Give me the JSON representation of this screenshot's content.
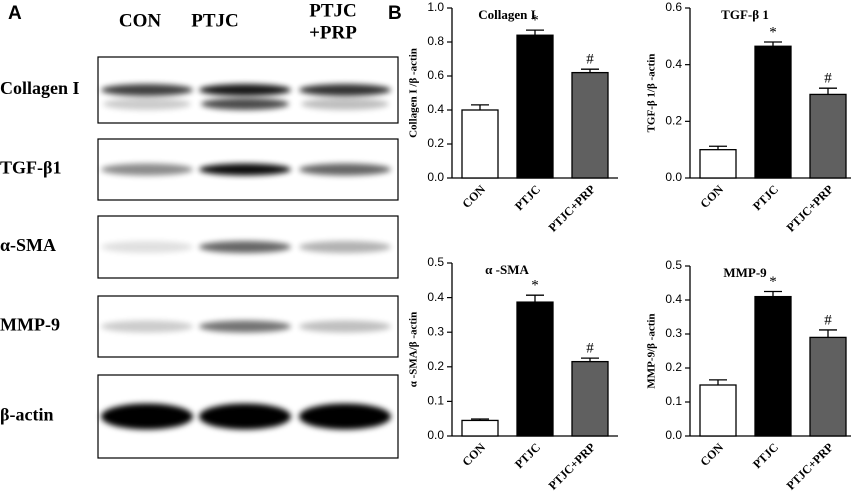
{
  "panel_a": {
    "letter": "A",
    "columns": [
      "CON",
      "PTJC",
      [
        "PTJC",
        "+PRP"
      ]
    ],
    "rows": [
      "Collagen I",
      "TGF-β1",
      "α-SMA",
      "MMP-9",
      "β-actin"
    ]
  },
  "panel_b": {
    "letter": "B"
  },
  "chart_data": [
    {
      "type": "bar",
      "title": "Collagen I",
      "y_label": "Collagen I /β -actin",
      "categories": [
        "CON",
        "PTJC",
        "PTJC+PRP"
      ],
      "values": [
        0.4,
        0.84,
        0.62
      ],
      "errors": [
        0.03,
        0.03,
        0.02
      ],
      "colors": [
        "#ffffff",
        "#000000",
        "#606060"
      ],
      "significance": [
        null,
        "*",
        "#"
      ],
      "ylim": [
        0,
        1.0
      ],
      "yticks": [
        {
          "value": 0,
          "label": "0.0"
        },
        0.2,
        0.4,
        0.6,
        0.8,
        {
          "value": 1.0,
          "label": "1.0"
        }
      ]
    },
    {
      "type": "bar",
      "title": "TGF-β 1",
      "y_label": "TGF-β 1/β -actin",
      "categories": [
        "CON",
        "PTJC",
        "PTJC+PRP"
      ],
      "values": [
        0.1,
        0.465,
        0.295
      ],
      "errors": [
        0.012,
        0.015,
        0.022
      ],
      "colors": [
        "#ffffff",
        "#000000",
        "#606060"
      ],
      "significance": [
        null,
        "*",
        "#"
      ],
      "ylim": [
        0,
        0.6
      ],
      "yticks": [
        {
          "value": 0,
          "label": "0.0"
        },
        0.2,
        0.4,
        0.6
      ]
    },
    {
      "type": "bar",
      "title": "α -SMA",
      "y_label": "α -SMA/β -actin",
      "categories": [
        "CON",
        "PTJC",
        "PTJC+PRP"
      ],
      "values": [
        0.045,
        0.387,
        0.215
      ],
      "errors": [
        0.004,
        0.02,
        0.01
      ],
      "colors": [
        "#ffffff",
        "#000000",
        "#606060"
      ],
      "significance": [
        null,
        "*",
        "#"
      ],
      "ylim": [
        0,
        0.5
      ],
      "yticks": [
        {
          "value": 0,
          "label": "0.0"
        },
        0.1,
        0.2,
        0.3,
        0.4,
        0.5
      ]
    },
    {
      "type": "bar",
      "title": "MMP-9",
      "y_label": "MMP-9/β -actin",
      "categories": [
        "CON",
        "PTJC",
        "PTJC+PRP"
      ],
      "values": [
        0.15,
        0.41,
        0.29
      ],
      "errors": [
        0.015,
        0.015,
        0.022
      ],
      "colors": [
        "#ffffff",
        "#000000",
        "#606060"
      ],
      "significance": [
        null,
        "*",
        "#"
      ],
      "ylim": [
        0,
        0.5
      ],
      "yticks": [
        {
          "value": 0,
          "label": "0.0"
        },
        0.1,
        0.2,
        0.3,
        0.4,
        0.5
      ]
    }
  ]
}
